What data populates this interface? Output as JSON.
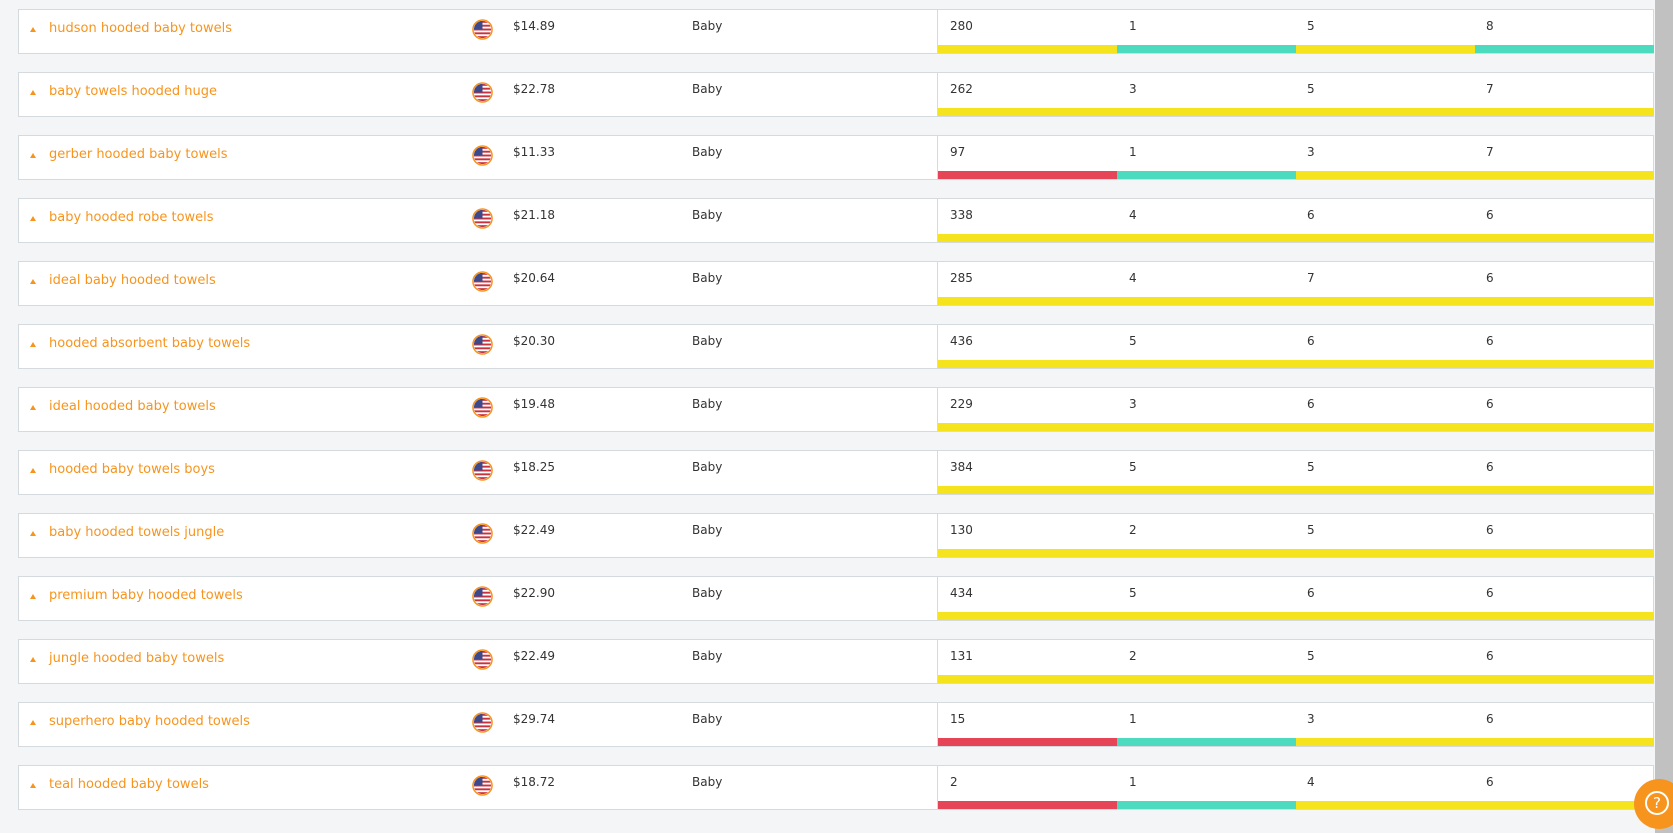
{
  "colors": {
    "accent": "#f7941d",
    "bar_yellow": "#f5e41d",
    "bar_teal": "#4ddbbf",
    "bar_red": "#e64558"
  },
  "icons": {
    "flag": "us-flag-icon",
    "caret": "caret-up-icon",
    "help": "question-mark-icon"
  },
  "help_button": {
    "label": "?"
  },
  "rows": [
    {
      "keyword": "hudson hooded baby towels",
      "price": "$14.89",
      "category": "Baby",
      "metrics": [
        "280",
        "1",
        "5",
        "8"
      ],
      "bars": [
        "yellow",
        "teal",
        "yellow",
        "teal"
      ]
    },
    {
      "keyword": "baby towels hooded huge",
      "price": "$22.78",
      "category": "Baby",
      "metrics": [
        "262",
        "3",
        "5",
        "7"
      ],
      "bars": [
        "yellow",
        "yellow",
        "yellow",
        "yellow"
      ]
    },
    {
      "keyword": "gerber hooded baby towels",
      "price": "$11.33",
      "category": "Baby",
      "metrics": [
        "97",
        "1",
        "3",
        "7"
      ],
      "bars": [
        "red",
        "teal",
        "yellow",
        "yellow"
      ]
    },
    {
      "keyword": "baby hooded robe towels",
      "price": "$21.18",
      "category": "Baby",
      "metrics": [
        "338",
        "4",
        "6",
        "6"
      ],
      "bars": [
        "yellow",
        "yellow",
        "yellow",
        "yellow"
      ]
    },
    {
      "keyword": "ideal baby hooded towels",
      "price": "$20.64",
      "category": "Baby",
      "metrics": [
        "285",
        "4",
        "7",
        "6"
      ],
      "bars": [
        "yellow",
        "yellow",
        "yellow",
        "yellow"
      ]
    },
    {
      "keyword": "hooded absorbent baby towels",
      "price": "$20.30",
      "category": "Baby",
      "metrics": [
        "436",
        "5",
        "6",
        "6"
      ],
      "bars": [
        "yellow",
        "yellow",
        "yellow",
        "yellow"
      ]
    },
    {
      "keyword": "ideal hooded baby towels",
      "price": "$19.48",
      "category": "Baby",
      "metrics": [
        "229",
        "3",
        "6",
        "6"
      ],
      "bars": [
        "yellow",
        "yellow",
        "yellow",
        "yellow"
      ]
    },
    {
      "keyword": "hooded baby towels boys",
      "price": "$18.25",
      "category": "Baby",
      "metrics": [
        "384",
        "5",
        "5",
        "6"
      ],
      "bars": [
        "yellow",
        "yellow",
        "yellow",
        "yellow"
      ]
    },
    {
      "keyword": "baby hooded towels jungle",
      "price": "$22.49",
      "category": "Baby",
      "metrics": [
        "130",
        "2",
        "5",
        "6"
      ],
      "bars": [
        "yellow",
        "yellow",
        "yellow",
        "yellow"
      ]
    },
    {
      "keyword": "premium baby hooded towels",
      "price": "$22.90",
      "category": "Baby",
      "metrics": [
        "434",
        "5",
        "6",
        "6"
      ],
      "bars": [
        "yellow",
        "yellow",
        "yellow",
        "yellow"
      ]
    },
    {
      "keyword": "jungle hooded baby towels",
      "price": "$22.49",
      "category": "Baby",
      "metrics": [
        "131",
        "2",
        "5",
        "6"
      ],
      "bars": [
        "yellow",
        "yellow",
        "yellow",
        "yellow"
      ]
    },
    {
      "keyword": "superhero baby hooded towels",
      "price": "$29.74",
      "category": "Baby",
      "metrics": [
        "15",
        "1",
        "3",
        "6"
      ],
      "bars": [
        "red",
        "teal",
        "yellow",
        "yellow"
      ]
    },
    {
      "keyword": "teal hooded baby towels",
      "price": "$18.72",
      "category": "Baby",
      "metrics": [
        "2",
        "1",
        "4",
        "6"
      ],
      "bars": [
        "red",
        "teal",
        "yellow",
        "yellow"
      ]
    }
  ]
}
